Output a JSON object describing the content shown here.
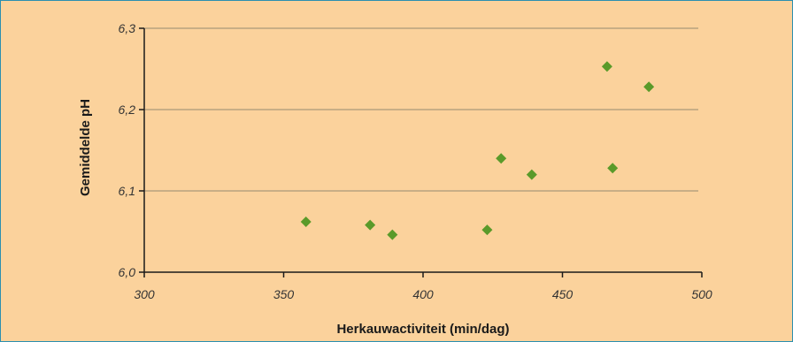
{
  "chart_data": {
    "type": "scatter",
    "title": "",
    "xlabel": "Herkauwactiviteit (min/dag)",
    "ylabel": "Gemiddelde pH",
    "xlim": [
      300,
      500
    ],
    "ylim": [
      6.0,
      6.3
    ],
    "x_ticks": [
      "300",
      "350",
      "400",
      "450",
      "500"
    ],
    "y_ticks": [
      "6,0",
      "6,1",
      "6,2",
      "6,3"
    ],
    "grid": "horizontal",
    "legend": "none",
    "colors": {
      "background": "#fbd29c",
      "gridline": "#b8a27e",
      "axis": "#1a1a1a",
      "marker": "#5a9a2a",
      "border": "#2b8fb0"
    },
    "series": [
      {
        "x": [
          358,
          381,
          389,
          423,
          428,
          439,
          466,
          468,
          481
        ],
        "y": [
          6.062,
          6.058,
          6.046,
          6.052,
          6.14,
          6.12,
          6.253,
          6.128,
          6.228
        ]
      }
    ]
  }
}
